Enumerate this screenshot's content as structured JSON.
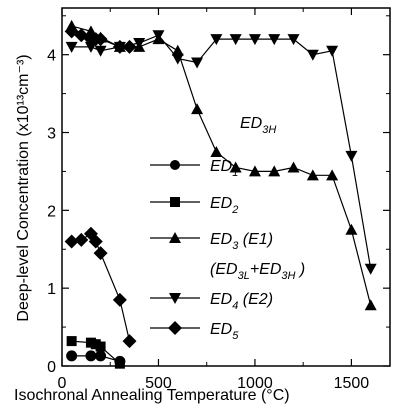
{
  "chart_data": {
    "type": "line",
    "title": "",
    "xlabel": "Isochronal Annealing Temperature (°C)",
    "ylabel": "Deep-level Concentration (x10¹³cm⁻³)",
    "xlim": [
      0,
      1700
    ],
    "ylim": [
      0,
      4.6
    ],
    "xticks": [
      0,
      500,
      1000,
      1500
    ],
    "yticks": [
      0,
      1,
      2,
      3,
      4
    ],
    "grid": false,
    "legend_position": "center",
    "annotation": "ED3H",
    "series": [
      {
        "name": "ED1",
        "marker": "circle",
        "x": [
          50,
          150,
          200,
          300
        ],
        "y": [
          0.13,
          0.13,
          0.13,
          0.06
        ]
      },
      {
        "name": "ED2",
        "marker": "square",
        "x": [
          50,
          150,
          175,
          200,
          300
        ],
        "y": [
          0.32,
          0.3,
          0.28,
          0.25,
          0.03
        ]
      },
      {
        "name": "ED3 (E1)",
        "label2": "(ED3L+ED3H)",
        "marker": "triangle-up",
        "x": [
          50,
          150,
          200,
          300,
          400,
          500,
          600,
          700,
          800,
          900,
          1000,
          1100,
          1200,
          1300,
          1400,
          1500,
          1600
        ],
        "y": [
          4.37,
          4.3,
          4.22,
          4.1,
          4.1,
          4.2,
          4.05,
          3.3,
          2.75,
          2.55,
          2.5,
          2.5,
          2.55,
          2.45,
          2.45,
          1.75,
          0.78
        ]
      },
      {
        "name": "ED4 (E2)",
        "marker": "triangle-down",
        "x": [
          50,
          150,
          200,
          300,
          400,
          500,
          600,
          700,
          800,
          900,
          1000,
          1100,
          1200,
          1300,
          1400,
          1500,
          1600
        ],
        "y": [
          4.1,
          4.1,
          4.05,
          4.1,
          4.15,
          4.25,
          3.95,
          3.9,
          4.2,
          4.2,
          4.2,
          4.2,
          4.2,
          4.0,
          4.05,
          2.7,
          1.25
        ]
      },
      {
        "name": "ED5",
        "marker": "diamond",
        "x": [
          50,
          100,
          150,
          175,
          200,
          300,
          350
        ],
        "y": [
          4.3,
          4.25,
          4.2,
          4.2,
          4.2,
          4.1,
          4.1
        ]
      },
      {
        "name": "ED5-low",
        "legend": false,
        "marker": "diamond",
        "x": [
          50,
          100,
          150,
          175,
          200,
          300,
          350
        ],
        "y": [
          1.6,
          1.62,
          1.7,
          1.6,
          1.45,
          0.85,
          0.32
        ]
      }
    ]
  },
  "legend": {
    "ed1": "ED",
    "ed1_sub": "1",
    "ed2": "ED",
    "ed2_sub": "2",
    "ed3": "ED",
    "ed3_sub": "3",
    "ed3_tail": "  (E1)",
    "ed3b_open": "(ED",
    "ed3b_sub1": "3L",
    "ed3b_plus": "+ED",
    "ed3b_sub2": "3H",
    "ed3b_close": " )",
    "ed4": "ED",
    "ed4_sub": "4",
    "ed4_tail": " (E2)",
    "ed5": "ED",
    "ed5_sub": "5"
  },
  "annotation": {
    "text": "ED",
    "sub": "3H"
  }
}
